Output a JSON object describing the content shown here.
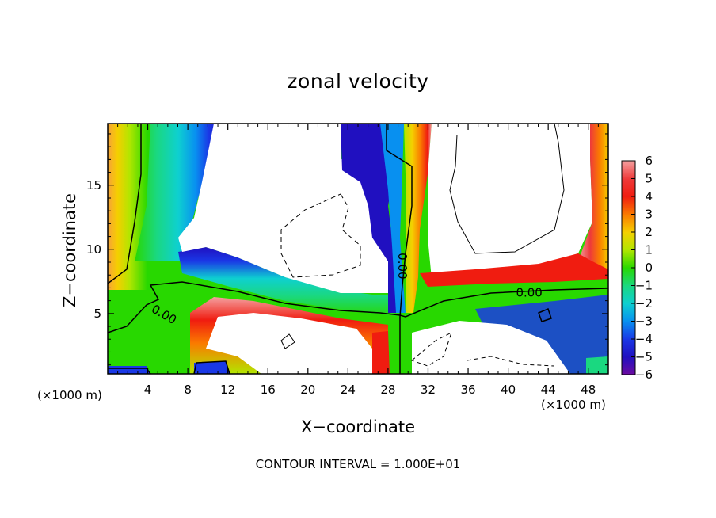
{
  "chart_data": {
    "type": "heatmap",
    "title": "zonal velocity",
    "xlabel": "X−coordinate",
    "ylabel": "Z−coordinate",
    "x_unit_note": "(×1000 m)",
    "footer": "CONTOUR INTERVAL = 1.000E+01",
    "xlim": [
      0,
      50
    ],
    "ylim": [
      0.3,
      19.8
    ],
    "x_ticks": [
      4,
      8,
      12,
      16,
      20,
      24,
      28,
      32,
      36,
      40,
      44,
      48
    ],
    "y_ticks": [
      5,
      10,
      15
    ],
    "x_tick_labels": [
      "4",
      "8",
      "12",
      "16",
      "20",
      "24",
      "28",
      "32",
      "36",
      "40",
      "44",
      "48"
    ],
    "y_tick_labels": [
      "5",
      "10",
      "15"
    ],
    "contour_labels": [
      {
        "text": "0.00",
        "x": 5.6,
        "z": 4.9,
        "angle": 30
      },
      {
        "text": "0.00",
        "x": 29.4,
        "z": 8.7,
        "angle": 90
      },
      {
        "text": "0.00",
        "x": 42.1,
        "z": 6.6,
        "angle": 0
      }
    ],
    "colorbar": {
      "labels": [
        "6",
        "5",
        "4",
        "3",
        "2",
        "1",
        "0",
        "−1",
        "−2",
        "−3",
        "−4",
        "−5",
        "−6"
      ],
      "colors": [
        "#f4a0a0",
        "#ee3a3a",
        "#f01c10",
        "#fa7a00",
        "#f5cf00",
        "#b2e600",
        "#28d800",
        "#1ad880",
        "#0ed0d0",
        "#0890f0",
        "#1a38e6",
        "#2010c0",
        "#6e0ca0"
      ]
    },
    "fields": {
      "white_undefined": "#ffffff",
      "left_wall_positive": "#f7a23a",
      "right_wall_positive": "#f04040"
    }
  }
}
